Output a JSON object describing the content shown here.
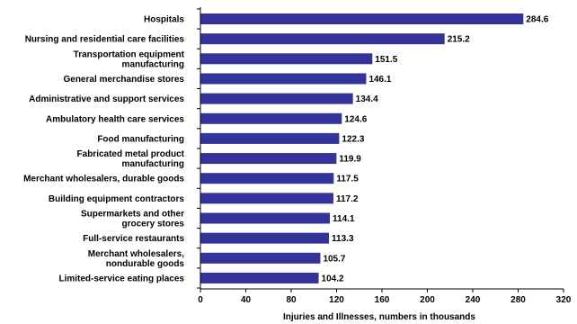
{
  "chart_data": {
    "type": "bar",
    "orientation": "horizontal",
    "categories": [
      "Hospitals",
      "Nursing and residential care facilities",
      "Transportation equipment\nmanufacturing",
      "General merchandise stores",
      "Administrative and support services",
      "Ambulatory health care services",
      "Food manufacturing",
      "Fabricated metal product\nmanufacturing",
      "Merchant wholesalers, durable goods",
      "Building equipment contractors",
      "Supermarkets and other\ngrocery stores",
      "Full-service restaurants",
      "Merchant wholesalers,\nnondurable goods",
      "Limited-service eating places"
    ],
    "values": [
      284.6,
      215.2,
      151.5,
      146.1,
      134.4,
      124.6,
      122.3,
      119.9,
      117.5,
      117.2,
      114.1,
      113.3,
      105.7,
      104.2
    ],
    "value_labels": [
      "284.6",
      "215.2",
      "151.5",
      "146.1",
      "134.4",
      "124.6",
      "122.3",
      "119.9",
      "117.5",
      "117.2",
      "114.1",
      "113.3",
      "105.7",
      "104.2"
    ],
    "xlim": [
      0,
      320
    ],
    "xticks": [
      0,
      40,
      80,
      120,
      160,
      200,
      240,
      280,
      320
    ],
    "xtick_labels": [
      "0",
      "40",
      "80",
      "120",
      "160",
      "200",
      "240",
      "280",
      "320"
    ],
    "xlabel": "Injuries and Illnesses, numbers in thousands",
    "grid": false,
    "bar_color": "#33339a"
  }
}
